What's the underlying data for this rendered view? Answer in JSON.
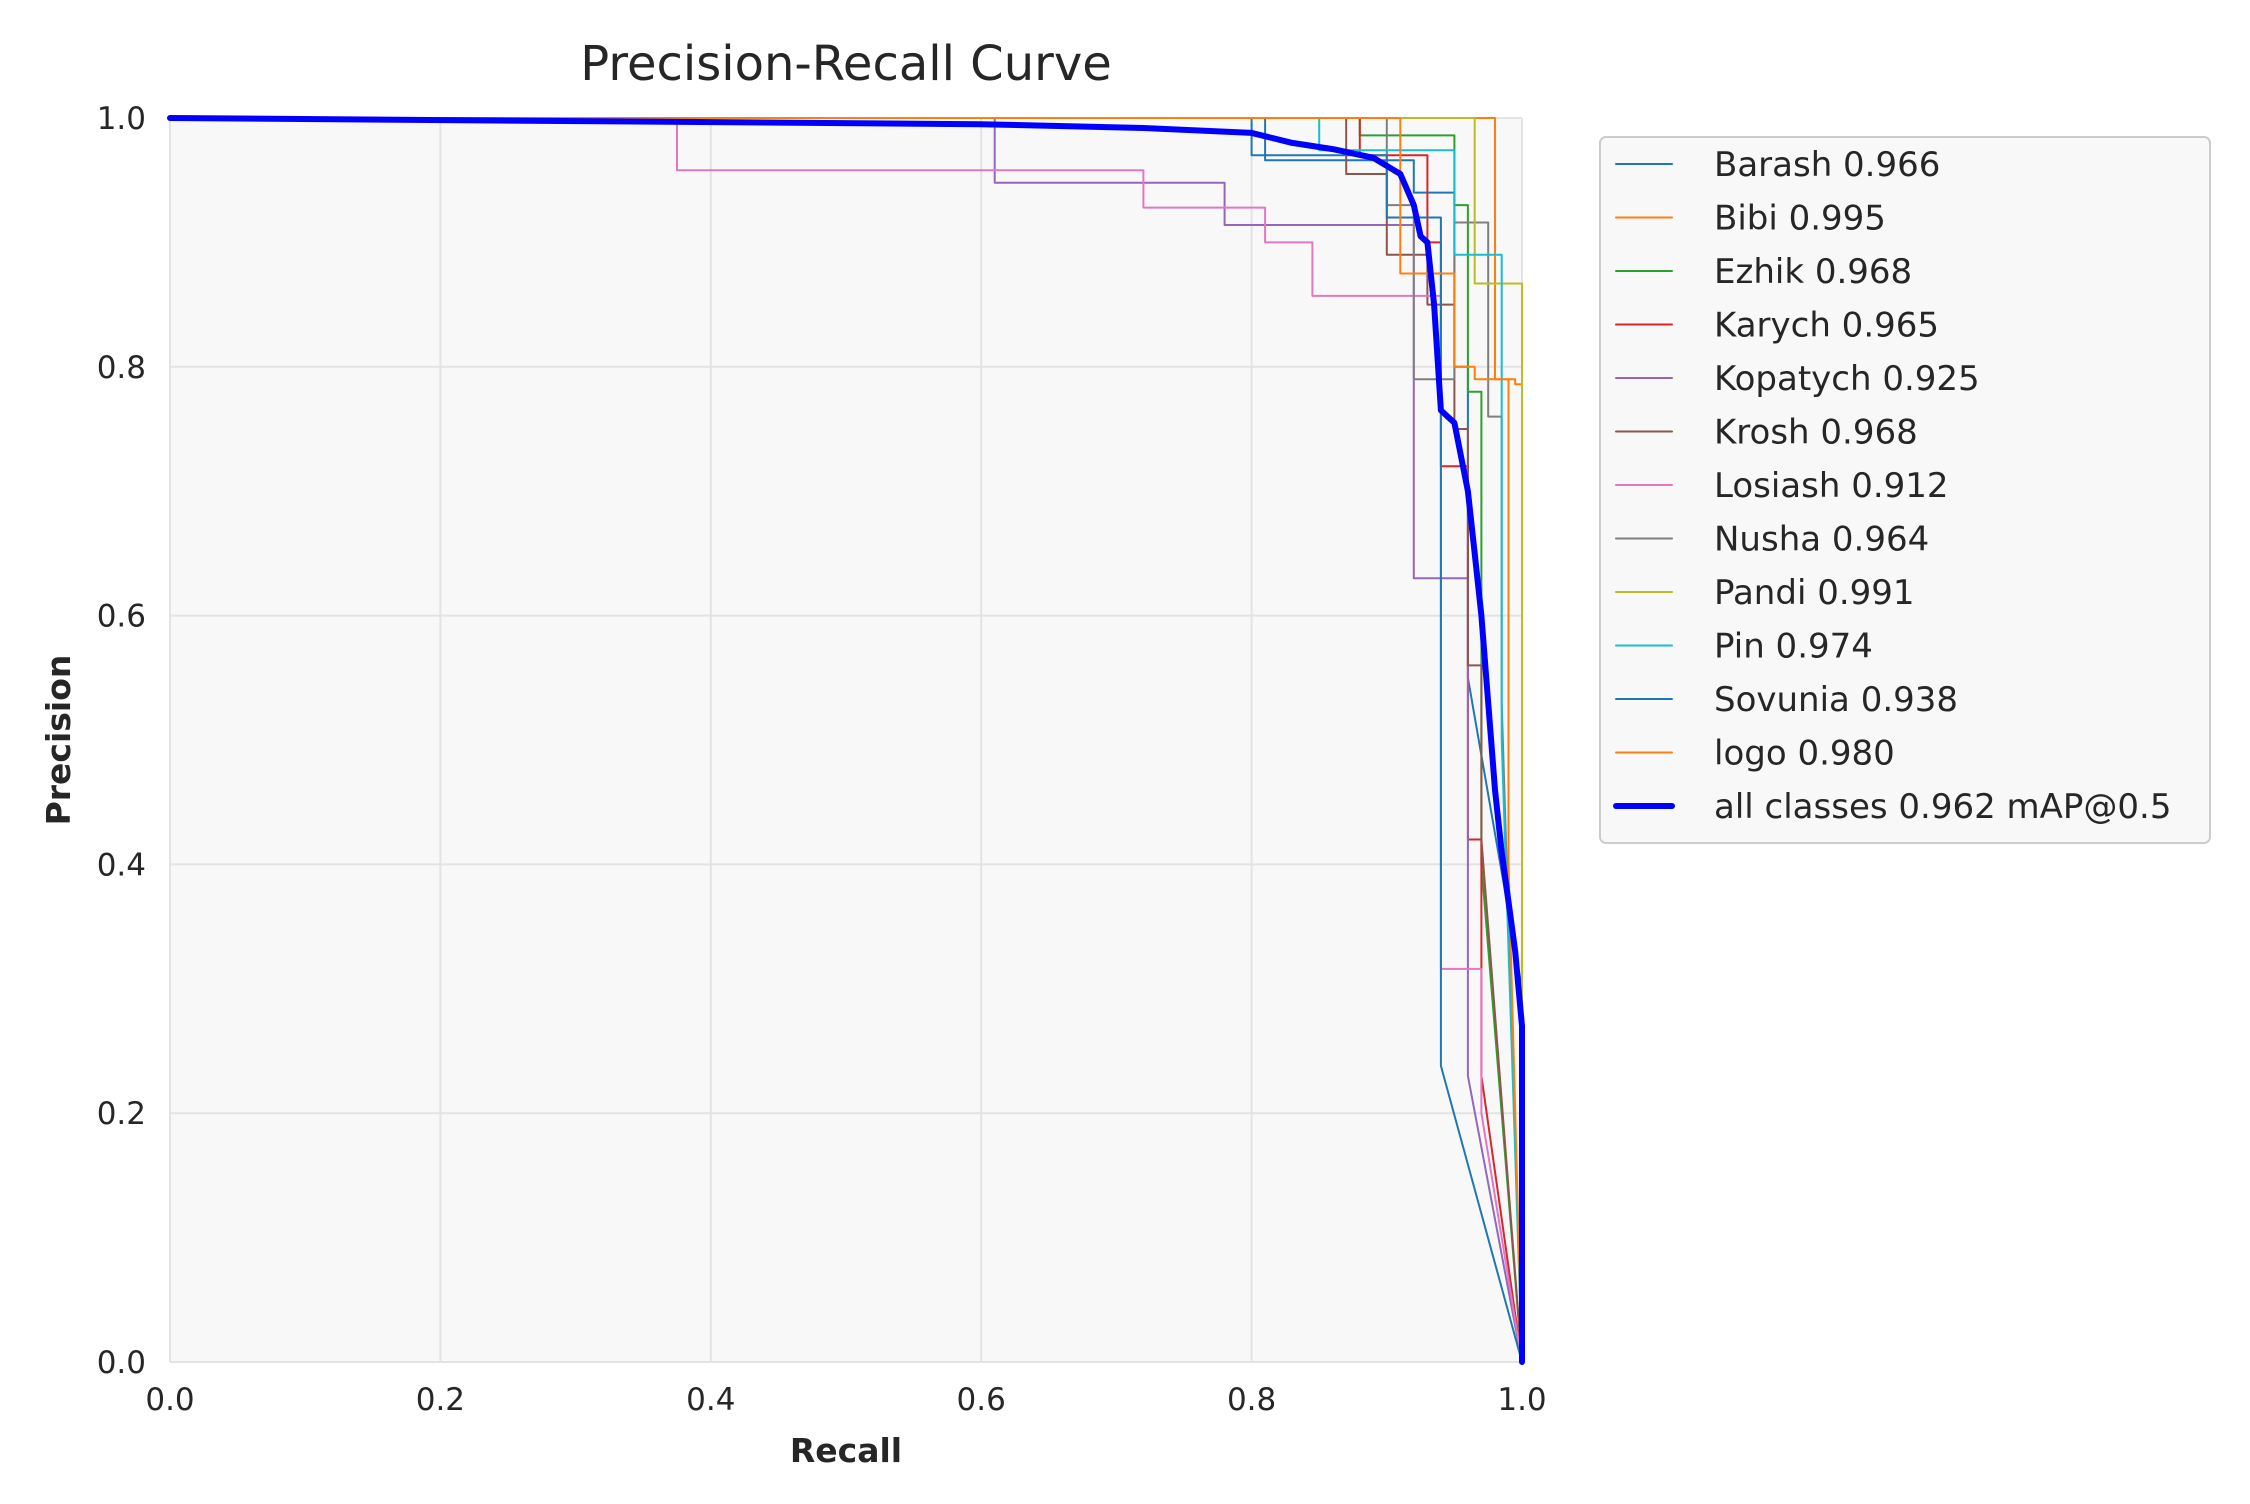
{
  "chart_data": {
    "type": "line",
    "title": "Precision-Recall Curve",
    "xlabel": "Recall",
    "ylabel": "Precision",
    "xlim": [
      0.0,
      1.0
    ],
    "ylim": [
      0.0,
      1.0
    ],
    "xticks": [
      "0.0",
      "0.2",
      "0.4",
      "0.6",
      "0.8",
      "1.0"
    ],
    "yticks": [
      "0.0",
      "0.2",
      "0.4",
      "0.6",
      "0.8",
      "1.0"
    ],
    "grid": true,
    "legend_position": "outside right, top",
    "series": [
      {
        "name": "Barash 0.966",
        "color": "#1f77b4",
        "width": 2,
        "x": [
          0,
          0.8,
          0.81,
          0.81,
          0.92,
          0.92,
          0.95,
          0.95,
          0.96,
          0.96,
          1.0,
          1.0
        ],
        "y": [
          1,
          1,
          1,
          0.966,
          0.966,
          0.94,
          0.94,
          0.8,
          0.8,
          0.55,
          0.3,
          0.0
        ]
      },
      {
        "name": "Bibi 0.995",
        "color": "#ff7f0e",
        "width": 2,
        "x": [
          0,
          0.91,
          0.91,
          0.98,
          0.98,
          0.995,
          0.995,
          1.0,
          1.0
        ],
        "y": [
          1,
          1,
          1,
          1,
          0.79,
          0.79,
          0.786,
          0.786,
          0.0
        ]
      },
      {
        "name": "Ezhik 0.968",
        "color": "#2ca02c",
        "width": 2,
        "x": [
          0,
          0.88,
          0.88,
          0.95,
          0.95,
          0.96,
          0.96,
          0.97,
          0.97,
          1.0
        ],
        "y": [
          1,
          1,
          0.986,
          0.986,
          0.93,
          0.93,
          0.78,
          0.78,
          0.4,
          0.0
        ]
      },
      {
        "name": "Karych 0.965",
        "color": "#d62728",
        "width": 2,
        "x": [
          0,
          0.88,
          0.88,
          0.93,
          0.93,
          0.94,
          0.94,
          0.96,
          0.96,
          0.97,
          0.97,
          1.0
        ],
        "y": [
          1,
          1,
          0.97,
          0.97,
          0.9,
          0.9,
          0.72,
          0.72,
          0.42,
          0.42,
          0.23,
          0.0
        ]
      },
      {
        "name": "Kopatych 0.925",
        "color": "#9467bd",
        "width": 2,
        "x": [
          0,
          0.61,
          0.61,
          0.78,
          0.78,
          0.92,
          0.92,
          0.96,
          0.96,
          1.0
        ],
        "y": [
          1,
          1,
          0.948,
          0.948,
          0.914,
          0.914,
          0.63,
          0.63,
          0.23,
          0.0
        ]
      },
      {
        "name": "Krosh 0.968",
        "color": "#8c564b",
        "width": 2,
        "x": [
          0,
          0.87,
          0.87,
          0.9,
          0.9,
          0.93,
          0.93,
          0.95,
          0.95,
          0.96,
          0.96,
          0.97,
          0.97,
          1.0
        ],
        "y": [
          1,
          1,
          0.955,
          0.955,
          0.89,
          0.89,
          0.85,
          0.85,
          0.75,
          0.75,
          0.56,
          0.56,
          0.42,
          0.0
        ]
      },
      {
        "name": "Losiash 0.912",
        "color": "#e377c2",
        "width": 2,
        "x": [
          0,
          0.375,
          0.375,
          0.72,
          0.72,
          0.81,
          0.81,
          0.845,
          0.845,
          0.94,
          0.94,
          0.97,
          0.97,
          1.0
        ],
        "y": [
          1,
          1,
          0.958,
          0.958,
          0.928,
          0.928,
          0.9,
          0.9,
          0.857,
          0.857,
          0.316,
          0.316,
          0.2,
          0.0
        ]
      },
      {
        "name": "Nusha 0.964",
        "color": "#7f7f7f",
        "width": 2,
        "x": [
          0,
          0.9,
          0.9,
          0.92,
          0.92,
          0.95,
          0.95,
          0.975,
          0.975,
          0.985,
          0.985,
          1.0
        ],
        "y": [
          1,
          1,
          0.93,
          0.93,
          0.79,
          0.79,
          0.916,
          0.916,
          0.76,
          0.76,
          0.53,
          0.0
        ]
      },
      {
        "name": "Pandi 0.991",
        "color": "#bcbd22",
        "width": 2,
        "x": [
          0,
          0.965,
          0.965,
          1.0,
          1.0
        ],
        "y": [
          1,
          1,
          0.867,
          0.867,
          0.0
        ]
      },
      {
        "name": "Pin 0.974",
        "color": "#17becf",
        "width": 2,
        "x": [
          0,
          0.85,
          0.85,
          0.95,
          0.95,
          0.985,
          0.985,
          1.0
        ],
        "y": [
          1,
          1,
          0.974,
          0.974,
          0.89,
          0.89,
          0.5,
          0.0
        ]
      },
      {
        "name": "Sovunia 0.938",
        "color": "#1f77b4",
        "width": 2,
        "x": [
          0,
          0.8,
          0.8,
          0.9,
          0.9,
          0.94,
          0.94,
          1.0
        ],
        "y": [
          1,
          1,
          0.97,
          0.97,
          0.92,
          0.92,
          0.238,
          0.0
        ]
      },
      {
        "name": "logo 0.980",
        "color": "#ff7f0e",
        "width": 2,
        "x": [
          0,
          0.91,
          0.91,
          0.95,
          0.95,
          0.965,
          0.965,
          0.99,
          0.99,
          1.0
        ],
        "y": [
          1,
          1,
          0.875,
          0.875,
          0.8,
          0.8,
          0.79,
          0.79,
          0.4,
          0.0
        ]
      },
      {
        "name": "all classes 0.962 mAP@0.5",
        "color": "#0000ff",
        "width": 6,
        "x": [
          0,
          0.6,
          0.72,
          0.8,
          0.83,
          0.86,
          0.89,
          0.91,
          0.92,
          0.925,
          0.93,
          0.935,
          0.94,
          0.945,
          0.95,
          0.96,
          0.965,
          0.97,
          0.975,
          0.98,
          0.985,
          0.99,
          0.995,
          1.0,
          1.0
        ],
        "y": [
          1,
          0.995,
          0.992,
          0.988,
          0.98,
          0.975,
          0.968,
          0.955,
          0.93,
          0.905,
          0.9,
          0.85,
          0.765,
          0.76,
          0.755,
          0.7,
          0.65,
          0.6,
          0.53,
          0.46,
          0.41,
          0.37,
          0.33,
          0.27,
          0.0
        ]
      }
    ]
  }
}
